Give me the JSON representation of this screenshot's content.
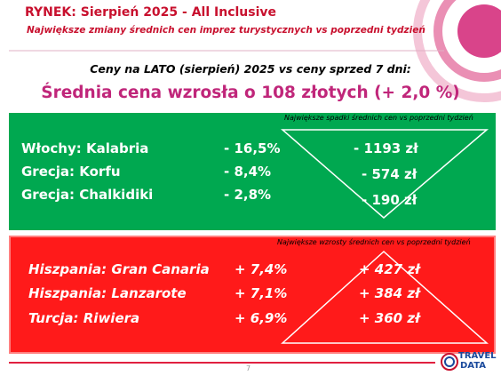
{
  "header": {
    "title": "RYNEK: Sierpień 2025 - All Inclusive",
    "subtitle": "Największe zmiany średnich cen imprez turystycznych vs poprzedni tydzień"
  },
  "summary": {
    "lead": "Ceny na LATO (sierpień) 2025 vs ceny sprzed 7 dni:",
    "headline": "Średnia cena wzrosła o 108 złotych (+ 2,0 %)"
  },
  "decreases": {
    "caption": "Największe spadki średnich cen vs poprzedni tydzień",
    "rows": [
      [
        "Włochy: Kalabria",
        "- 16,5%",
        "- 1193 zł"
      ],
      [
        "Grecja: Korfu",
        "- 8,4%",
        "- 574 zł"
      ],
      [
        "Grecja: Chalkidiki",
        "- 2,8%",
        "- 190 zł"
      ]
    ]
  },
  "increases": {
    "caption": "Największe wzrosty średnich cen vs poprzedni tydzień",
    "rows": [
      [
        "Hiszpania: Gran Canaria",
        "+ 7,4%",
        "+ 427 zł"
      ],
      [
        "Hiszpania: Lanzarote",
        "+ 7,1%",
        "+ 384 zł"
      ],
      [
        "Turcja: Riwiera",
        "+ 6,9%",
        "+ 360 zł"
      ]
    ]
  },
  "footer": {
    "page": "7",
    "logo_1": "TRAVEL",
    "logo_2": "DATA"
  }
}
